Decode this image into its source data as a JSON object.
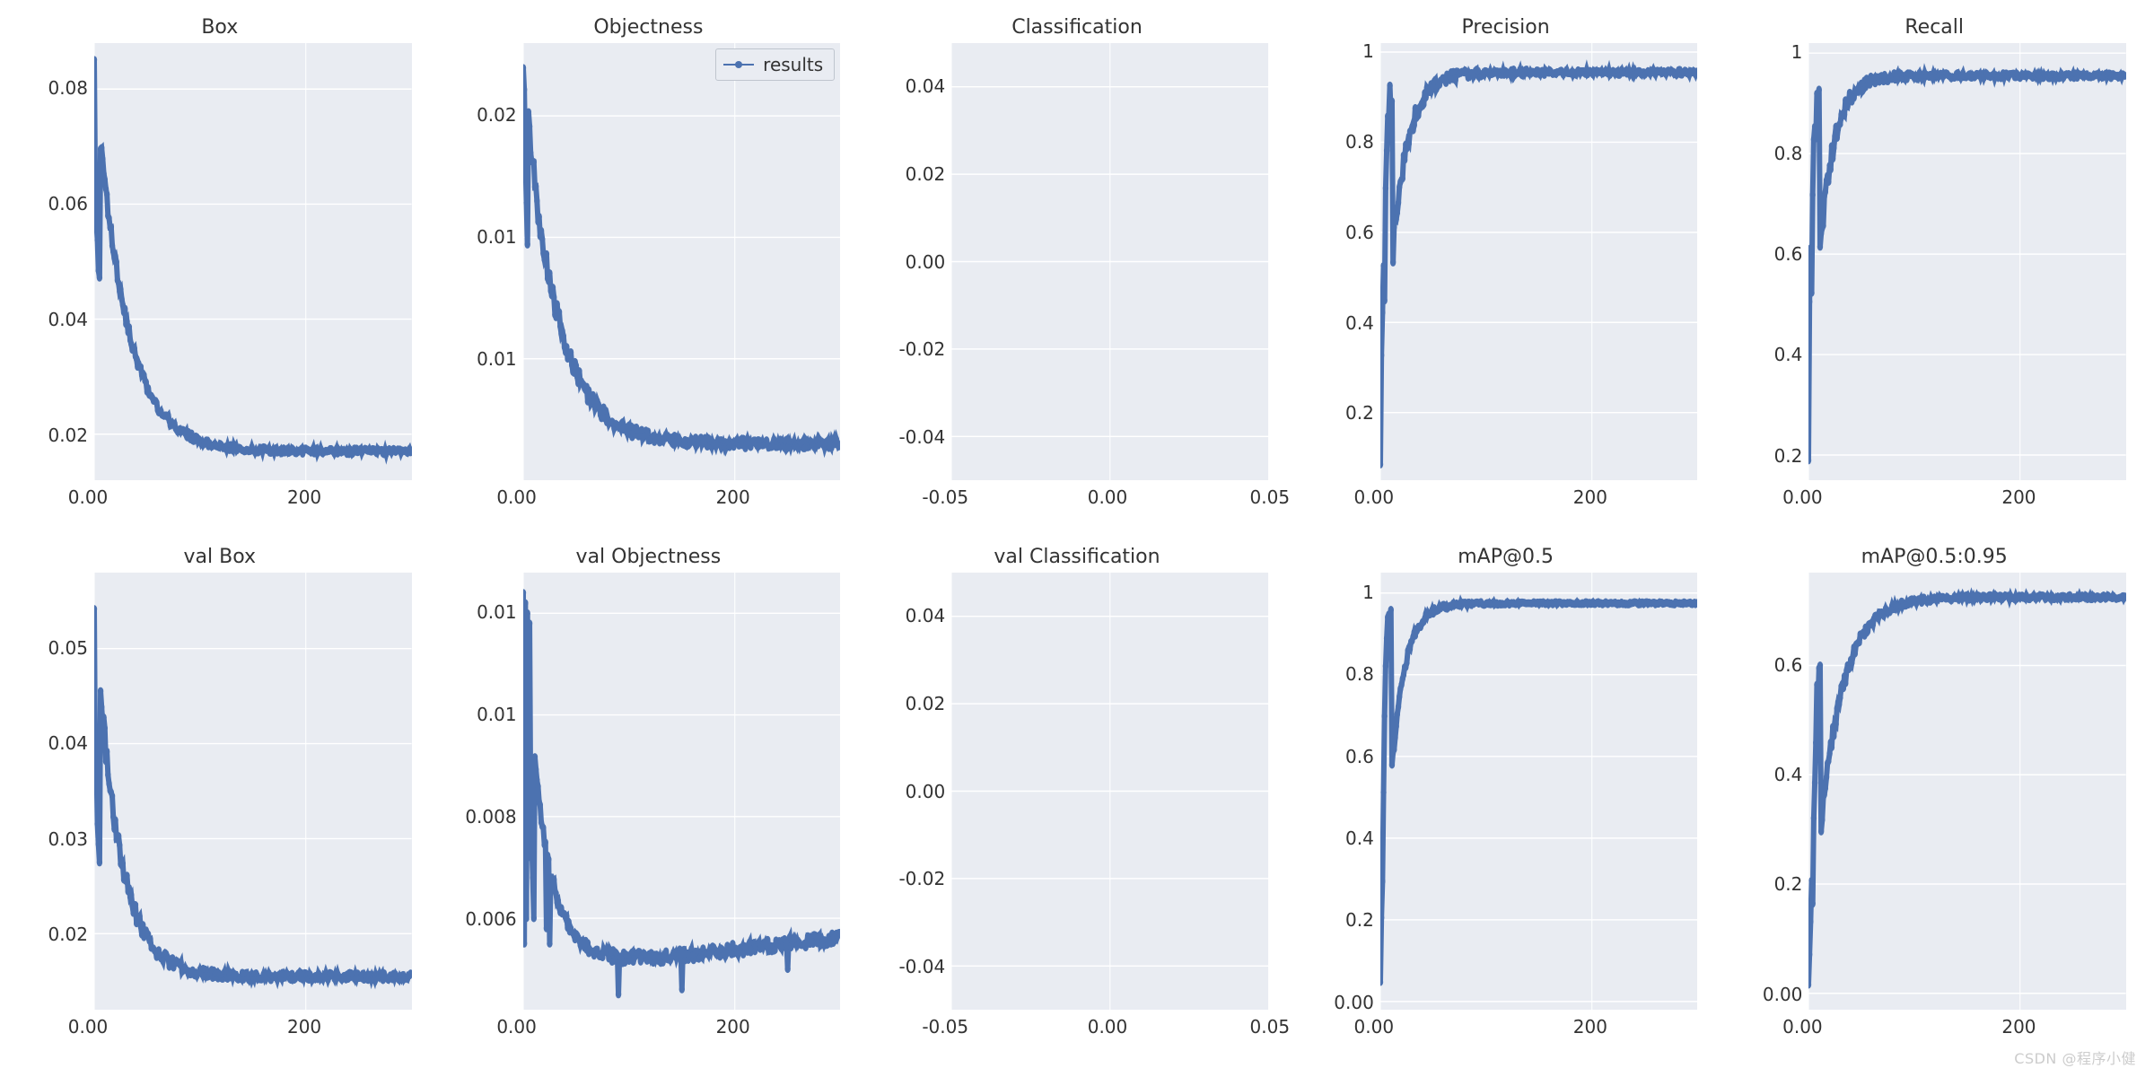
{
  "global": {
    "series_label": "results",
    "series_color": "#4c72b0",
    "background_color": "#ffffff",
    "panel_bg": "#e9ecf2",
    "grid_color": "#ffffff",
    "text_color": "#333333",
    "marker_radius": 3.2,
    "line_width": 2.0,
    "title_fontsize": 22,
    "tick_fontsize": 20,
    "n_epochs": 300,
    "watermark": "CSDN @程序小健"
  },
  "panels": [
    {
      "id": "box",
      "title": "Box",
      "type": "line",
      "xlim": [
        0,
        300
      ],
      "xticks": [
        0,
        200
      ],
      "ylim": [
        0.012,
        0.088
      ],
      "yticks": [
        0.08,
        0.06,
        0.04,
        0.02
      ],
      "curve": {
        "kind": "decay",
        "start": 0.084,
        "end": 0.017,
        "tau": 28,
        "noise": 0.001,
        "init_drops": [
          0.084,
          0.064,
          0.056,
          0.052,
          0.05,
          0.048
        ]
      }
    },
    {
      "id": "objectness",
      "title": "Objectness",
      "type": "line",
      "xlim": [
        0,
        300
      ],
      "xticks": [
        0,
        200
      ],
      "ylim": [
        0.005,
        0.023
      ],
      "yticks": [
        0.02,
        0.015,
        0.01
      ],
      "curve": {
        "kind": "decay",
        "start": 0.022,
        "end": 0.0065,
        "tau": 30,
        "noise": 0.0004,
        "init_drops": [
          0.022,
          0.0205,
          0.018,
          0.016,
          0.015
        ]
      },
      "legend": true
    },
    {
      "id": "classification",
      "title": "Classification",
      "type": "empty",
      "xlim": [
        -0.05,
        0.05
      ],
      "xticks": [
        -0.05,
        0.0,
        0.05
      ],
      "ylim": [
        -0.05,
        0.05
      ],
      "yticks": [
        0.04,
        0.02,
        0.0,
        -0.02,
        -0.04
      ]
    },
    {
      "id": "precision",
      "title": "Precision",
      "type": "line",
      "xlim": [
        0,
        300
      ],
      "xticks": [
        0,
        200
      ],
      "ylim": [
        0.05,
        1.02
      ],
      "yticks": [
        1.0,
        0.8,
        0.6,
        0.4,
        0.2
      ],
      "curve": {
        "kind": "rise",
        "start": 0.08,
        "end": 0.955,
        "tau": 15,
        "noise": 0.03,
        "init_points": [
          0.08,
          0.3,
          0.45,
          0.55,
          0.43,
          0.7,
          0.8,
          0.84,
          0.88,
          0.9,
          0.86,
          0.91
        ]
      }
    },
    {
      "id": "recall",
      "title": "Recall",
      "type": "line",
      "xlim": [
        0,
        300
      ],
      "xticks": [
        0,
        200
      ],
      "ylim": [
        0.15,
        1.02
      ],
      "yticks": [
        1.0,
        0.8,
        0.6,
        0.4,
        0.2
      ],
      "curve": {
        "kind": "rise",
        "start": 0.2,
        "end": 0.955,
        "tau": 14,
        "noise": 0.025,
        "init_points": [
          0.2,
          0.48,
          0.6,
          0.5,
          0.72,
          0.82,
          0.88,
          0.85,
          0.92,
          0.9,
          0.93
        ]
      }
    },
    {
      "id": "val_box",
      "title": "val Box",
      "type": "line",
      "xlim": [
        0,
        300
      ],
      "xticks": [
        0,
        200
      ],
      "ylim": [
        0.012,
        0.058
      ],
      "yticks": [
        0.05,
        0.04,
        0.03,
        0.02
      ],
      "curve": {
        "kind": "decay",
        "start": 0.055,
        "end": 0.0155,
        "tau": 22,
        "noise": 0.0008,
        "init_drops": [
          0.055,
          0.038,
          0.037,
          0.033,
          0.03,
          0.028
        ]
      }
    },
    {
      "id": "val_objectness",
      "title": "val Objectness",
      "type": "line",
      "xlim": [
        0,
        300
      ],
      "xticks": [
        0,
        200
      ],
      "ylim": [
        0.0042,
        0.0128
      ],
      "yticks": [
        0.012,
        0.01,
        0.008,
        0.006
      ],
      "curve": {
        "kind": "decay_dip",
        "start": 0.0124,
        "end": 0.0052,
        "tau": 18,
        "noise": 0.00025,
        "spikes": [
          [
            0,
            0.0124
          ],
          [
            1,
            0.0055
          ],
          [
            2,
            0.0122
          ],
          [
            3,
            0.006
          ],
          [
            4,
            0.012
          ],
          [
            5,
            0.0072
          ],
          [
            6,
            0.0118
          ],
          [
            7,
            0.0082
          ],
          [
            8,
            0.0075
          ],
          [
            9,
            0.0068
          ],
          [
            10,
            0.006
          ],
          [
            22,
            0.0058
          ],
          [
            25,
            0.0055
          ],
          [
            90,
            0.0045
          ],
          [
            150,
            0.0046
          ],
          [
            250,
            0.005
          ]
        ]
      }
    },
    {
      "id": "val_classification",
      "title": "val Classification",
      "type": "empty",
      "xlim": [
        -0.05,
        0.05
      ],
      "xticks": [
        -0.05,
        0.0,
        0.05
      ],
      "ylim": [
        -0.05,
        0.05
      ],
      "yticks": [
        0.04,
        0.02,
        0.0,
        -0.02,
        -0.04
      ]
    },
    {
      "id": "map50",
      "title": "mAP@0.5",
      "type": "line",
      "xlim": [
        0,
        300
      ],
      "xticks": [
        0,
        200
      ],
      "ylim": [
        -0.02,
        1.05
      ],
      "yticks": [
        1.0,
        0.8,
        0.6,
        0.4,
        0.2,
        0.0
      ],
      "curve": {
        "kind": "rise",
        "start": 0.04,
        "end": 0.975,
        "tau": 13,
        "noise": 0.015,
        "init_points": [
          0.04,
          0.22,
          0.3,
          0.5,
          0.7,
          0.82,
          0.9,
          0.93,
          0.95,
          0.93,
          0.96
        ]
      }
    },
    {
      "id": "map5095",
      "title": "mAP@0.5:0.95",
      "type": "line",
      "xlim": [
        0,
        300
      ],
      "xticks": [
        0,
        200
      ],
      "ylim": [
        -0.03,
        0.77
      ],
      "yticks": [
        0.6,
        0.4,
        0.2,
        0.0
      ],
      "curve": {
        "kind": "rise",
        "start": 0.01,
        "end": 0.725,
        "tau": 22,
        "noise": 0.02,
        "init_points": [
          0.01,
          0.08,
          0.12,
          0.22,
          0.18,
          0.34,
          0.4,
          0.45,
          0.55,
          0.52,
          0.6,
          0.62
        ]
      }
    }
  ]
}
